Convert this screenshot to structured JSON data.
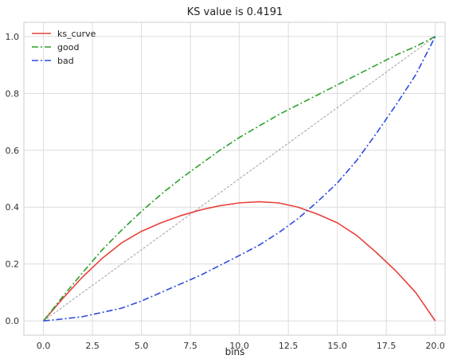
{
  "chart_data": {
    "type": "line",
    "title": "KS value is 0.4191",
    "xlabel": "bins",
    "ylabel": "",
    "xlim": [
      -1,
      20.5
    ],
    "ylim": [
      -0.05,
      1.05
    ],
    "xticks": [
      "0.0",
      "2.5",
      "5.0",
      "7.5",
      "10.0",
      "12.5",
      "15.0",
      "17.5",
      "20.0"
    ],
    "yticks": [
      "0.0",
      "0.2",
      "0.4",
      "0.6",
      "0.8",
      "1.0"
    ],
    "grid": true,
    "legend_position": "top-left",
    "x": [
      0,
      1,
      2,
      3,
      4,
      5,
      6,
      7,
      8,
      9,
      10,
      11,
      12,
      13,
      14,
      15,
      16,
      17,
      18,
      19,
      20
    ],
    "series": [
      {
        "name": "ks_curve",
        "color": "#e8413c",
        "style": "solid",
        "values": [
          0.0,
          0.08,
          0.155,
          0.22,
          0.275,
          0.315,
          0.345,
          0.37,
          0.39,
          0.405,
          0.415,
          0.4191,
          0.415,
          0.4,
          0.375,
          0.345,
          0.3,
          0.24,
          0.175,
          0.1,
          0.0
        ]
      },
      {
        "name": "good",
        "color": "#2ca02c",
        "style": "dashdot",
        "values": [
          0.0,
          0.087,
          0.17,
          0.25,
          0.32,
          0.385,
          0.445,
          0.5,
          0.55,
          0.6,
          0.645,
          0.685,
          0.725,
          0.76,
          0.795,
          0.83,
          0.865,
          0.9,
          0.935,
          0.965,
          1.0
        ]
      },
      {
        "name": "bad",
        "color": "#2d4be0",
        "style": "dashdot",
        "values": [
          0.0,
          0.007,
          0.015,
          0.03,
          0.045,
          0.07,
          0.1,
          0.13,
          0.16,
          0.195,
          0.23,
          0.266,
          0.31,
          0.36,
          0.42,
          0.485,
          0.565,
          0.66,
          0.76,
          0.865,
          1.0
        ]
      }
    ],
    "reference_line": {
      "color": "#a0a0a0",
      "style": "dashed",
      "x": [
        0,
        20
      ],
      "values": [
        0.0,
        1.0
      ]
    }
  }
}
